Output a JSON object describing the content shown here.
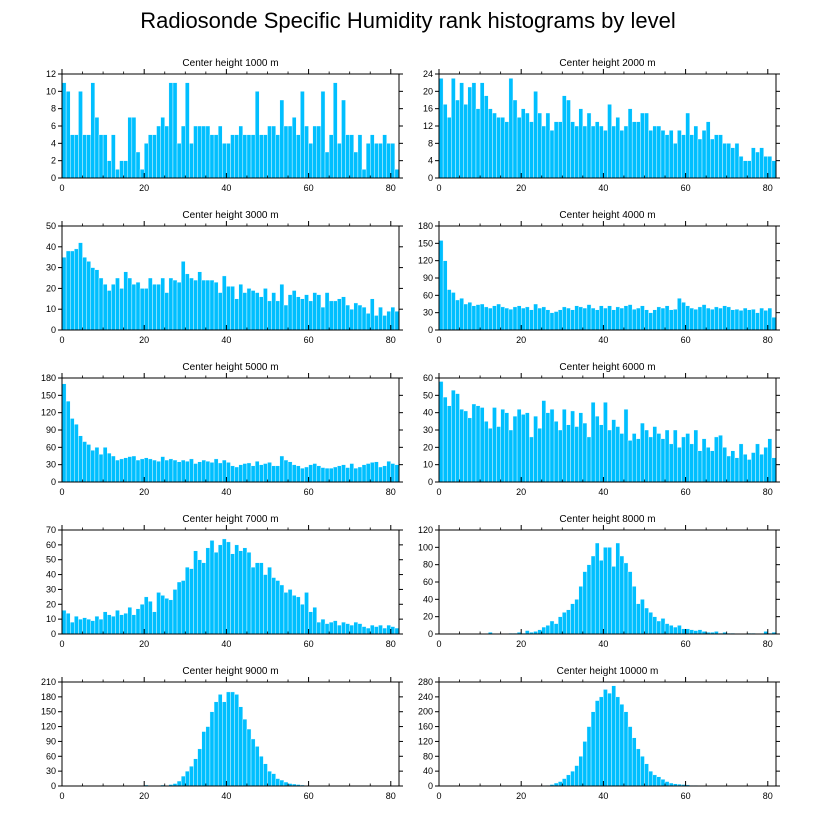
{
  "title": "Radiosonde Specific Humidity rank histograms by level",
  "bar_color": "#00bfff",
  "chart_data": [
    {
      "type": "bar",
      "title": "Center height 1000 m",
      "xlim": [
        0,
        82
      ],
      "xticks": [
        0,
        20,
        40,
        60,
        80
      ],
      "ylim": [
        0,
        12
      ],
      "yticks": [
        0,
        2,
        4,
        6,
        8,
        10,
        12
      ],
      "values": [
        11,
        10,
        5,
        5,
        10,
        5,
        5,
        11,
        7,
        5,
        5,
        2,
        5,
        1,
        2,
        2,
        7,
        7,
        3,
        1,
        4,
        5,
        5,
        6,
        7,
        6,
        11,
        11,
        4,
        6,
        11,
        4,
        6,
        6,
        6,
        6,
        5,
        5,
        6,
        4,
        4,
        5,
        5,
        6,
        5,
        5,
        5,
        10,
        5,
        5,
        6,
        6,
        5,
        9,
        6,
        6,
        7,
        5,
        10,
        6,
        4,
        6,
        6,
        10,
        3,
        5,
        11,
        4,
        9,
        5,
        5,
        3,
        5,
        1,
        4,
        5,
        4,
        4,
        5,
        4,
        4,
        1
      ]
    },
    {
      "type": "bar",
      "title": "Center height 2000 m",
      "xlim": [
        0,
        82
      ],
      "xticks": [
        0,
        20,
        40,
        60,
        80
      ],
      "ylim": [
        0,
        24
      ],
      "yticks": [
        0,
        4,
        8,
        12,
        16,
        20,
        24
      ],
      "values": [
        23,
        17,
        14,
        23,
        18,
        22,
        17,
        21,
        22,
        16,
        22,
        19,
        16,
        15,
        14,
        14,
        13,
        23,
        18,
        14,
        16,
        15,
        13,
        20,
        15,
        12,
        15,
        11,
        13,
        13,
        19,
        18,
        13,
        12,
        16,
        12,
        15,
        12,
        13,
        12,
        11,
        17,
        12,
        14,
        11,
        12,
        16,
        13,
        13,
        15,
        15,
        11,
        12,
        12,
        11,
        10,
        11,
        8,
        11,
        10,
        15,
        10,
        12,
        9,
        11,
        13,
        9,
        10,
        10,
        8,
        8,
        7,
        8,
        5,
        4,
        4,
        7,
        6,
        7,
        5,
        5,
        4
      ]
    },
    {
      "type": "bar",
      "title": "Center height 3000 m",
      "xlim": [
        0,
        82
      ],
      "xticks": [
        0,
        20,
        40,
        60,
        80
      ],
      "ylim": [
        0,
        50
      ],
      "yticks": [
        0,
        10,
        20,
        30,
        40,
        50
      ],
      "values": [
        35,
        38,
        38,
        39,
        42,
        35,
        33,
        30,
        29,
        25,
        22,
        19,
        22,
        25,
        20,
        28,
        25,
        22,
        23,
        20,
        20,
        25,
        22,
        22,
        25,
        18,
        25,
        24,
        23,
        33,
        27,
        25,
        24,
        28,
        24,
        24,
        24,
        23,
        18,
        26,
        21,
        21,
        15,
        22,
        18,
        20,
        19,
        18,
        16,
        20,
        14,
        18,
        14,
        22,
        12,
        17,
        19,
        16,
        15,
        17,
        14,
        18,
        17,
        11,
        18,
        14,
        14,
        15,
        16,
        12,
        10,
        13,
        12,
        11,
        8,
        15,
        7,
        11,
        7,
        9,
        11,
        9
      ]
    },
    {
      "type": "bar",
      "title": "Center height 4000 m",
      "xlim": [
        0,
        82
      ],
      "xticks": [
        0,
        20,
        40,
        60,
        80
      ],
      "ylim": [
        0,
        180
      ],
      "yticks": [
        0,
        30,
        60,
        90,
        120,
        150,
        180
      ],
      "values": [
        155,
        120,
        70,
        65,
        52,
        55,
        45,
        48,
        42,
        44,
        45,
        40,
        38,
        42,
        45,
        40,
        38,
        36,
        40,
        42,
        38,
        40,
        35,
        45,
        38,
        40,
        35,
        30,
        32,
        35,
        40,
        38,
        35,
        42,
        40,
        38,
        44,
        38,
        35,
        42,
        38,
        42,
        35,
        40,
        38,
        42,
        44,
        36,
        38,
        42,
        35,
        30,
        35,
        40,
        38,
        42,
        35,
        36,
        55,
        48,
        42,
        38,
        36,
        40,
        44,
        38,
        36,
        40,
        38,
        42,
        40,
        35,
        36,
        34,
        38,
        35,
        36,
        30,
        38,
        34,
        38,
        22
      ]
    },
    {
      "type": "bar",
      "title": "Center height 5000 m",
      "xlim": [
        0,
        82
      ],
      "xticks": [
        0,
        20,
        40,
        60,
        80
      ],
      "ylim": [
        0,
        180
      ],
      "yticks": [
        0,
        30,
        60,
        90,
        120,
        150,
        180
      ],
      "values": [
        170,
        140,
        110,
        100,
        80,
        70,
        65,
        55,
        60,
        48,
        60,
        50,
        45,
        38,
        40,
        42,
        44,
        45,
        38,
        40,
        42,
        40,
        38,
        36,
        44,
        38,
        40,
        38,
        35,
        38,
        36,
        40,
        32,
        35,
        38,
        36,
        34,
        40,
        33,
        38,
        34,
        28,
        26,
        30,
        32,
        33,
        28,
        36,
        30,
        32,
        34,
        28,
        28,
        45,
        38,
        35,
        30,
        28,
        24,
        26,
        30,
        32,
        28,
        25,
        24,
        24,
        26,
        28,
        30,
        25,
        32,
        24,
        26,
        30,
        32,
        34,
        35,
        26,
        28,
        36,
        32,
        30
      ]
    },
    {
      "type": "bar",
      "title": "Center height 6000 m",
      "xlim": [
        0,
        82
      ],
      "xticks": [
        0,
        20,
        40,
        60,
        80
      ],
      "ylim": [
        0,
        60
      ],
      "yticks": [
        0,
        10,
        20,
        30,
        40,
        50,
        60
      ],
      "values": [
        58,
        49,
        44,
        53,
        51,
        42,
        41,
        37,
        45,
        44,
        43,
        35,
        31,
        43,
        32,
        42,
        40,
        30,
        38,
        42,
        39,
        40,
        26,
        38,
        31,
        47,
        40,
        42,
        35,
        30,
        42,
        33,
        41,
        32,
        40,
        34,
        26,
        46,
        38,
        33,
        46,
        30,
        36,
        32,
        28,
        42,
        24,
        28,
        25,
        34,
        30,
        26,
        32,
        28,
        25,
        30,
        22,
        30,
        20,
        26,
        28,
        22,
        30,
        18,
        25,
        20,
        18,
        26,
        27,
        20,
        15,
        18,
        14,
        22,
        16,
        13,
        17,
        22,
        16,
        20,
        25,
        14
      ]
    },
    {
      "type": "bar",
      "title": "Center height 7000 m",
      "xlim": [
        0,
        82
      ],
      "xticks": [
        0,
        20,
        40,
        60,
        80
      ],
      "ylim": [
        0,
        70
      ],
      "yticks": [
        0,
        10,
        20,
        30,
        40,
        50,
        60,
        70
      ],
      "values": [
        16,
        14,
        8,
        12,
        10,
        11,
        10,
        9,
        12,
        10,
        15,
        13,
        12,
        16,
        13,
        14,
        18,
        13,
        17,
        20,
        25,
        22,
        15,
        28,
        26,
        24,
        23,
        30,
        35,
        36,
        45,
        44,
        56,
        50,
        48,
        58,
        63,
        55,
        60,
        64,
        62,
        54,
        60,
        56,
        58,
        55,
        45,
        48,
        48,
        40,
        45,
        38,
        36,
        33,
        28,
        30,
        26,
        25,
        20,
        28,
        15,
        18,
        8,
        10,
        7,
        8,
        9,
        6,
        8,
        7,
        6,
        8,
        7,
        5,
        4,
        6,
        5,
        6,
        4,
        6,
        5,
        4
      ]
    },
    {
      "type": "bar",
      "title": "Center height 8000 m",
      "xlim": [
        0,
        82
      ],
      "xticks": [
        0,
        20,
        40,
        60,
        80
      ],
      "ylim": [
        0,
        120
      ],
      "yticks": [
        0,
        20,
        40,
        60,
        80,
        100,
        120
      ],
      "values": [
        0,
        0,
        0,
        0,
        0,
        0,
        0,
        0,
        0,
        0,
        0,
        0,
        2,
        0,
        0,
        0,
        0,
        1,
        1,
        2,
        1,
        4,
        2,
        3,
        5,
        8,
        10,
        15,
        12,
        20,
        25,
        28,
        35,
        40,
        55,
        72,
        80,
        90,
        105,
        85,
        100,
        100,
        78,
        105,
        90,
        82,
        72,
        55,
        35,
        40,
        30,
        25,
        20,
        15,
        18,
        12,
        10,
        8,
        10,
        6,
        6,
        5,
        4,
        5,
        3,
        2,
        2,
        3,
        1,
        2,
        1,
        1,
        0,
        0,
        0,
        1,
        1,
        0,
        0,
        3,
        1,
        2
      ]
    },
    {
      "type": "bar",
      "title": "Center height 9000 m",
      "xlim": [
        0,
        82
      ],
      "xticks": [
        0,
        20,
        40,
        60,
        80
      ],
      "ylim": [
        0,
        210
      ],
      "yticks": [
        0,
        30,
        60,
        90,
        120,
        150,
        180,
        210
      ],
      "values": [
        0,
        0,
        0,
        0,
        0,
        0,
        0,
        0,
        0,
        0,
        0,
        0,
        0,
        0,
        0,
        0,
        0,
        0,
        1,
        0,
        2,
        0,
        0,
        1,
        2,
        1,
        3,
        5,
        10,
        20,
        30,
        40,
        55,
        75,
        110,
        120,
        150,
        170,
        185,
        170,
        190,
        190,
        185,
        160,
        135,
        115,
        95,
        80,
        60,
        45,
        30,
        25,
        15,
        12,
        8,
        5,
        4,
        3,
        2,
        1,
        1,
        1,
        0,
        0,
        0,
        1,
        0,
        0,
        0,
        0,
        0,
        0,
        0,
        0,
        0,
        0,
        0,
        0,
        0,
        0,
        0,
        0
      ]
    },
    {
      "type": "bar",
      "title": "Center height 10000 m",
      "xlim": [
        0,
        82
      ],
      "xticks": [
        0,
        20,
        40,
        60,
        80
      ],
      "ylim": [
        0,
        280
      ],
      "yticks": [
        0,
        40,
        80,
        120,
        160,
        200,
        240,
        280
      ],
      "values": [
        0,
        0,
        0,
        0,
        0,
        0,
        0,
        0,
        0,
        0,
        0,
        0,
        0,
        0,
        0,
        0,
        0,
        0,
        0,
        0,
        0,
        0,
        0,
        0,
        1,
        1,
        2,
        4,
        8,
        12,
        20,
        30,
        40,
        55,
        80,
        120,
        160,
        200,
        230,
        240,
        260,
        250,
        270,
        240,
        220,
        200,
        160,
        130,
        100,
        80,
        60,
        40,
        30,
        25,
        18,
        12,
        8,
        6,
        5,
        4,
        3,
        2,
        2,
        1,
        1,
        1,
        0,
        0,
        0,
        0,
        0,
        0,
        0,
        0,
        0,
        0,
        0,
        0,
        0,
        0,
        0,
        0
      ]
    }
  ]
}
